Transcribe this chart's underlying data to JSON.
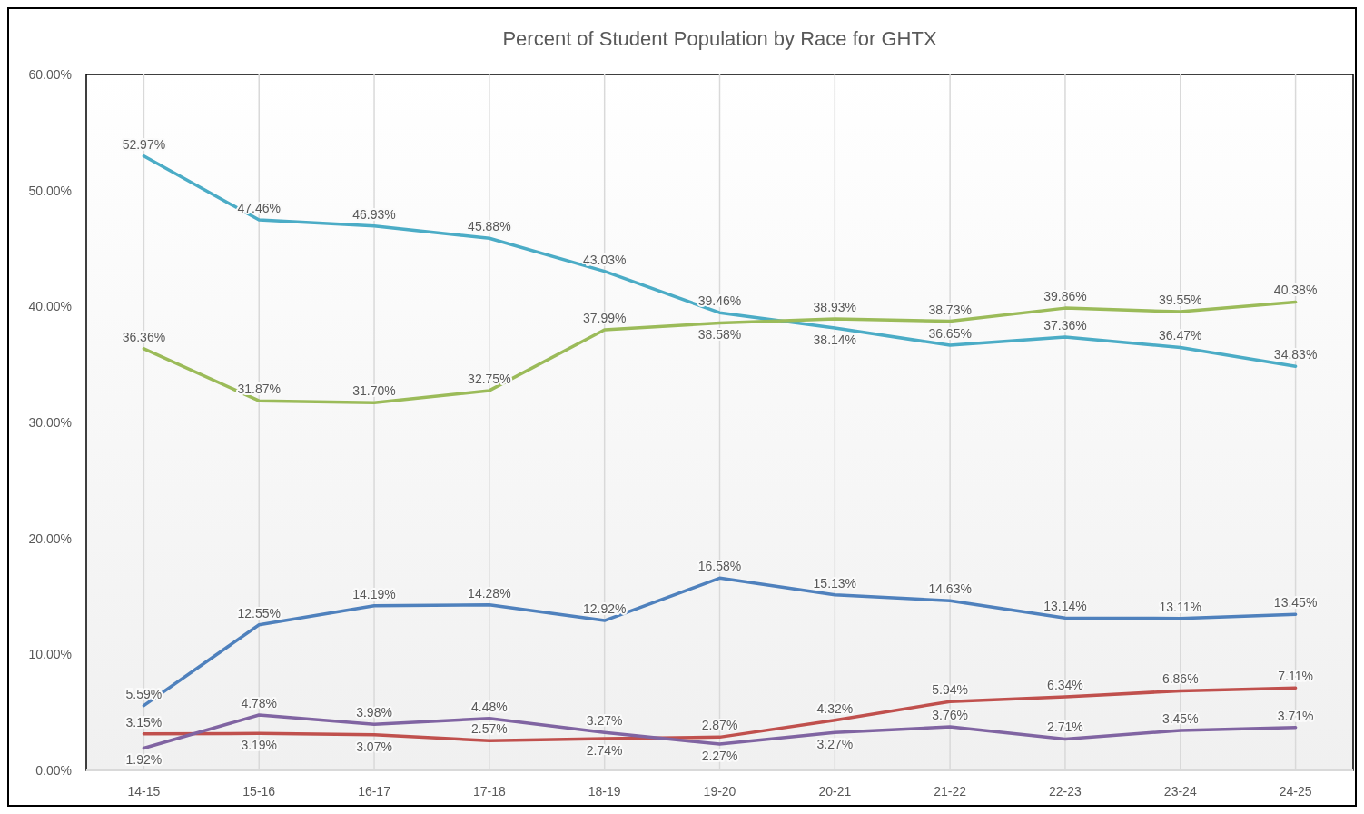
{
  "chart_data": {
    "type": "line",
    "title": "Percent  of  Student  Population  by  Race  for  GHTX",
    "categories": [
      "14-15",
      "15-16",
      "16-17",
      "17-18",
      "18-19",
      "19-20",
      "20-21",
      "21-22",
      "22-23",
      "23-24",
      "24-25"
    ],
    "series": [
      {
        "color": "#4bacc6",
        "values": [
          52.97,
          47.46,
          46.93,
          45.88,
          43.03,
          39.46,
          38.14,
          36.65,
          37.36,
          36.47,
          34.83
        ],
        "value_labels": [
          "52.97%",
          "47.46%",
          "46.93%",
          "45.88%",
          "43.03%",
          "39.46%",
          "38.14%",
          "36.65%",
          "37.36%",
          "36.47%",
          "34.83%"
        ]
      },
      {
        "color": "#9bbb59",
        "values": [
          36.36,
          31.87,
          31.7,
          32.75,
          37.99,
          38.58,
          38.93,
          38.73,
          39.86,
          39.55,
          40.38
        ],
        "value_labels": [
          "36.36%",
          "31.87%",
          "31.70%",
          "32.75%",
          "37.99%",
          "38.58%",
          "38.93%",
          "38.73%",
          "39.86%",
          "39.55%",
          "40.38%"
        ]
      },
      {
        "color": "#4f81bd",
        "values": [
          5.59,
          12.55,
          14.19,
          14.28,
          12.92,
          16.58,
          15.13,
          14.63,
          13.14,
          13.11,
          13.45
        ],
        "value_labels": [
          "5.59%",
          "12.55%",
          "14.19%",
          "14.28%",
          "12.92%",
          "16.58%",
          "15.13%",
          "14.63%",
          "13.14%",
          "13.11%",
          "13.45%"
        ]
      },
      {
        "color": "#c0504d",
        "values": [
          3.15,
          3.19,
          3.07,
          2.57,
          2.74,
          2.87,
          4.32,
          5.94,
          6.34,
          6.86,
          7.11
        ],
        "value_labels": [
          "3.15%",
          "3.19%",
          "3.07%",
          "2.57%",
          "2.74%",
          "2.87%",
          "4.32%",
          "5.94%",
          "6.34%",
          "6.86%",
          "7.11%"
        ]
      },
      {
        "color": "#8064a2",
        "values": [
          1.92,
          4.78,
          3.98,
          4.48,
          3.27,
          2.27,
          3.27,
          3.76,
          2.71,
          3.45,
          3.71
        ],
        "value_labels": [
          "1.92%",
          "4.78%",
          "3.98%",
          "4.48%",
          "3.27%",
          "2.27%",
          "3.27%",
          "3.76%",
          "2.71%",
          "3.45%",
          "3.71%"
        ]
      }
    ],
    "ylim": [
      0,
      60
    ],
    "yticks": [
      {
        "value": 0,
        "label": "0.00%"
      },
      {
        "value": 10,
        "label": "10.00%"
      },
      {
        "value": 20,
        "label": "20.00%"
      },
      {
        "value": 30,
        "label": "30.00%"
      },
      {
        "value": 40,
        "label": "40.00%"
      },
      {
        "value": 50,
        "label": "50.00%"
      },
      {
        "value": 60,
        "label": "60.00%"
      }
    ],
    "grid": "x",
    "marker": "none",
    "line_style": "solid"
  }
}
